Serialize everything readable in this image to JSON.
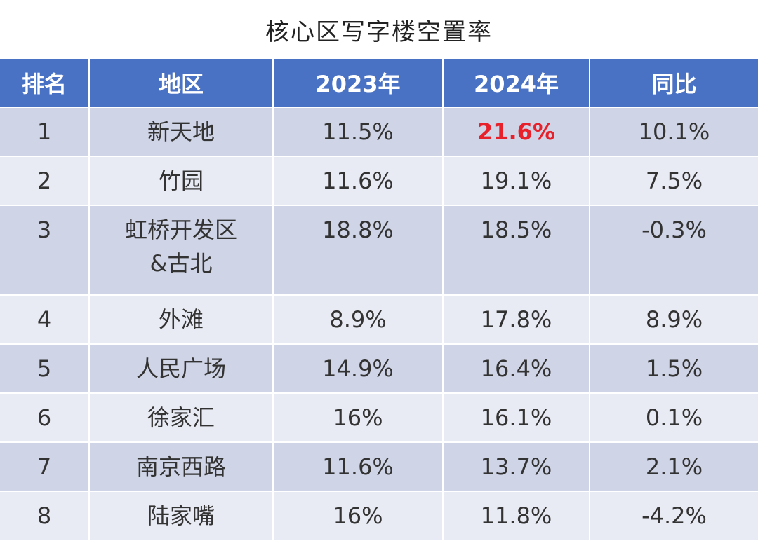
{
  "title": "核心区写字楼空置率",
  "headers": [
    "排名",
    "地区",
    "2023年",
    "2024年",
    "同比"
  ],
  "rows": [
    {
      "rank": "1",
      "area": "新天地",
      "y2023": "11.5%",
      "y2024": "21.6%",
      "yoy": "10.1%"
    },
    {
      "rank": "2",
      "area": "竹园",
      "y2023": "11.6%",
      "y2024": "19.1%",
      "yoy": "7.5%"
    },
    {
      "rank": "3",
      "area_line1": "虹桥开发区",
      "area_line2": "&古北",
      "y2023": "18.8%",
      "y2024": "18.5%",
      "yoy": "-0.3%"
    },
    {
      "rank": "4",
      "area": "外滩",
      "y2023": "8.9%",
      "y2024": "17.8%",
      "yoy": "8.9%"
    },
    {
      "rank": "5",
      "area": "人民广场",
      "y2023": "14.9%",
      "y2024": "16.4%",
      "yoy": "1.5%"
    },
    {
      "rank": "6",
      "area": "徐家汇",
      "y2023": "16%",
      "y2024": "16.1%",
      "yoy": "0.1%"
    },
    {
      "rank": "7",
      "area": "南京西路",
      "y2023": "11.6%",
      "y2024": "13.7%",
      "yoy": "2.1%"
    },
    {
      "rank": "8",
      "area": "陆家嘴",
      "y2023": "16%",
      "y2024": "11.8%",
      "yoy": "-4.2%"
    }
  ],
  "colors": {
    "header_bg": "#4a72c4",
    "header_text": "#ffffff",
    "row_dark": "#cfd4e6",
    "row_light": "#e9ebf4",
    "highlight": "#e8202a"
  }
}
